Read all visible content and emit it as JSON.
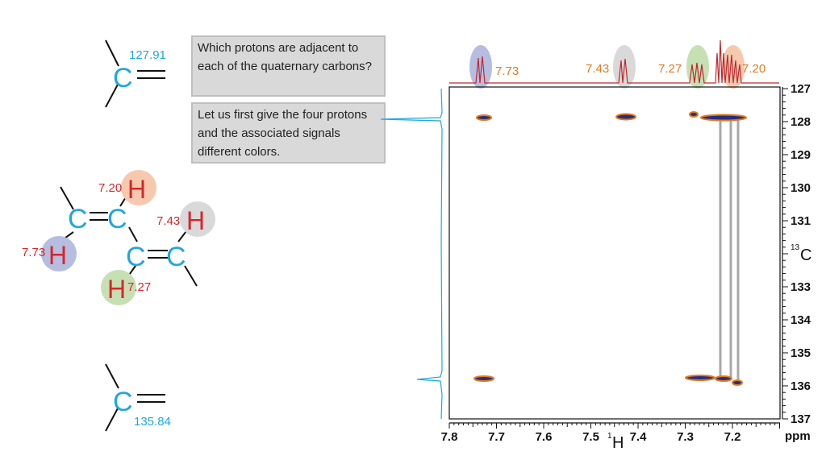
{
  "question": "Which protons are adjacent to each of the quaternary carbons?",
  "answer": "Let us first give the four protons and the associated signals different colors.",
  "molecule": {
    "atom_C": "C",
    "atom_H": "H",
    "top_carbon_shift": "127.91",
    "bottom_carbon_shift": "135.84",
    "protons": [
      {
        "shift": "7.20",
        "color": "#f6c9ae"
      },
      {
        "shift": "7.43",
        "color": "#d9d9d9"
      },
      {
        "shift": "7.73",
        "color": "#b5bde0"
      },
      {
        "shift": "7.27",
        "color": "#c6e0b4"
      }
    ]
  },
  "spectrum": {
    "proton_peak_labels": [
      "7.73",
      "7.43",
      "7.27",
      "7.20"
    ],
    "x_ticks": [
      "7.8",
      "7.7",
      "7.6",
      "7.5",
      "7.4",
      "7.3",
      "7.2"
    ],
    "y_ticks": [
      "127",
      "128",
      "129",
      "130",
      "131",
      "133",
      "134",
      "135",
      "136",
      "137"
    ],
    "x_unit": "ppm",
    "x_axis_label_sup": "1",
    "x_axis_label": "H",
    "y_axis_label_sup": "13",
    "y_axis_label": "C",
    "label_color": "#e07b20",
    "peak_color": "#c0282c",
    "projection_color": "#1ea7e0"
  }
}
